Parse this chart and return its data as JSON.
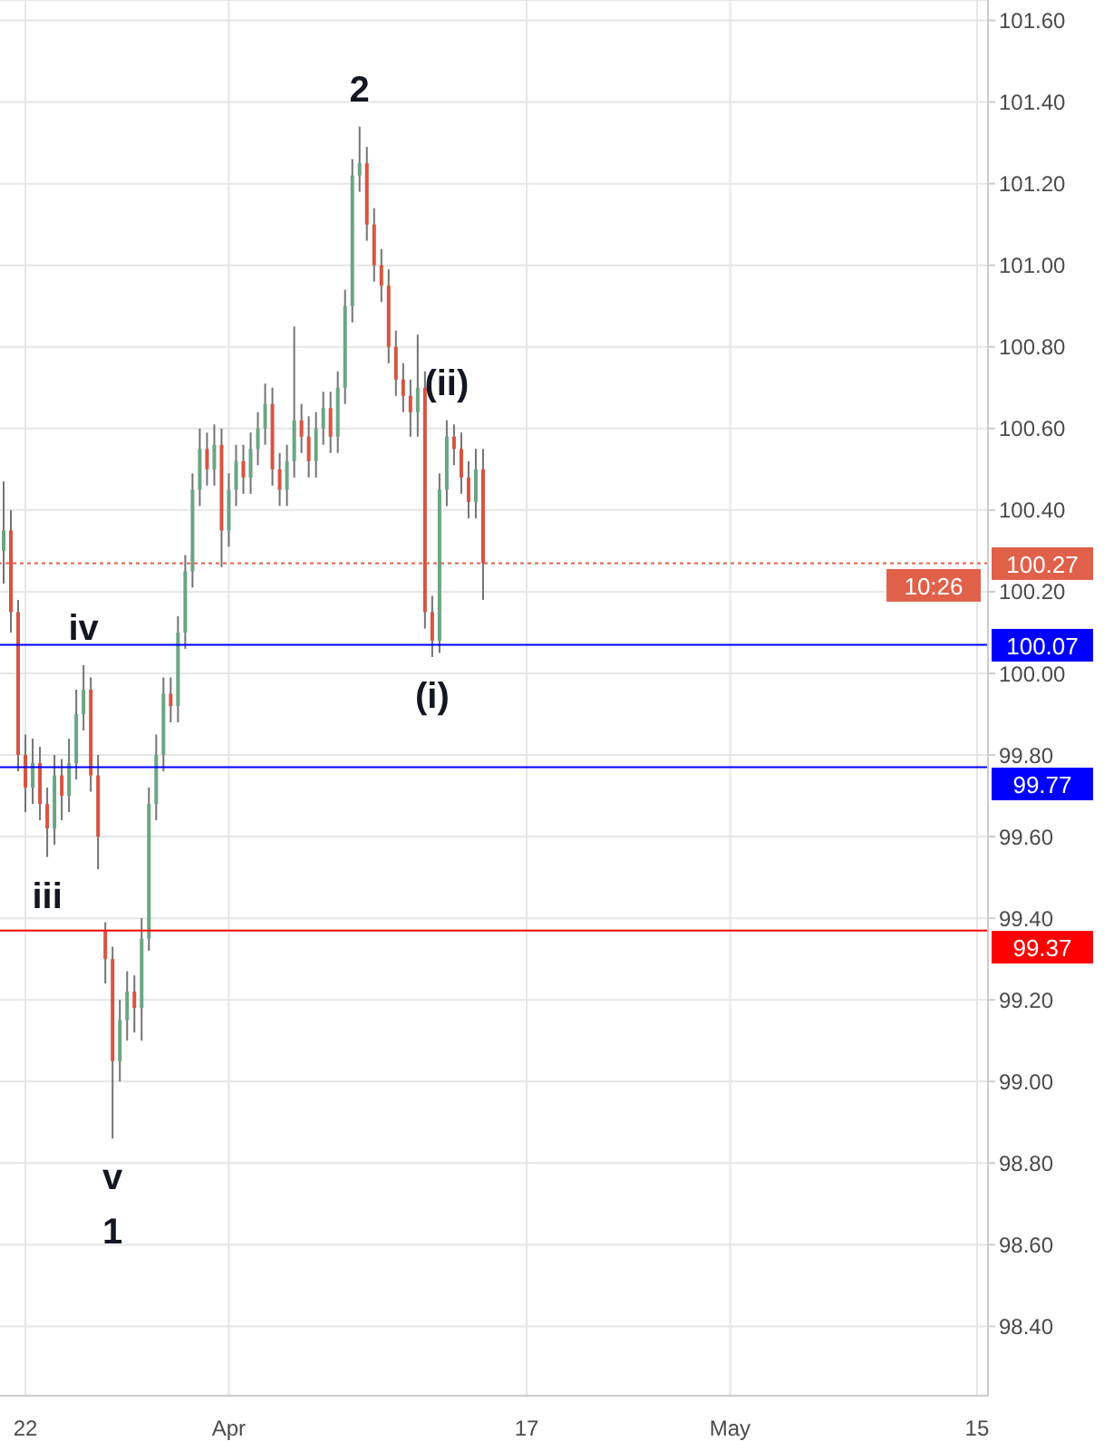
{
  "chart_data": {
    "type": "candlestick",
    "categories": [
      null,
      null,
      null,
      "22",
      null,
      null,
      null,
      null,
      null,
      null,
      null,
      null,
      null,
      null,
      null,
      null,
      null,
      null,
      null,
      null,
      null,
      null,
      null,
      null,
      null,
      null,
      null,
      null,
      null,
      null,
      null,
      "Apr",
      null,
      null,
      null,
      null,
      null,
      null,
      null,
      null,
      null,
      null,
      null,
      null,
      null,
      null,
      null,
      null,
      null,
      null,
      null,
      null,
      null,
      null,
      null,
      null,
      null,
      null,
      null,
      null,
      null,
      null,
      null,
      null,
      null,
      null,
      null,
      null,
      null,
      null,
      null,
      null,
      "17",
      null,
      null,
      null,
      null,
      null,
      null,
      null,
      null,
      null,
      null,
      null,
      null,
      null,
      null,
      null,
      null,
      null,
      null,
      null,
      null,
      null,
      null,
      null,
      null,
      null,
      null,
      null,
      "May",
      null,
      null,
      null,
      null,
      null,
      null,
      null,
      null,
      null,
      null,
      null,
      null,
      null,
      null,
      null,
      null,
      null,
      null,
      null,
      null,
      null,
      null,
      null,
      null,
      null,
      null,
      null,
      null,
      null,
      null,
      null,
      null,
      null,
      "15",
      null
    ],
    "ohlc": [
      [
        100.3,
        100.47,
        100.22,
        100.35
      ],
      [
        100.35,
        100.4,
        100.1,
        100.15
      ],
      [
        100.15,
        100.18,
        99.76,
        99.8
      ],
      [
        99.8,
        99.85,
        99.66,
        99.72
      ],
      [
        99.72,
        99.84,
        99.68,
        99.78
      ],
      [
        99.78,
        99.82,
        99.64,
        99.68
      ],
      [
        99.68,
        99.72,
        99.55,
        99.62
      ],
      [
        99.62,
        99.8,
        99.58,
        99.75
      ],
      [
        99.75,
        99.79,
        99.64,
        99.7
      ],
      [
        99.7,
        99.84,
        99.66,
        99.78
      ],
      [
        99.78,
        99.96,
        99.74,
        99.9
      ],
      [
        99.9,
        100.02,
        99.86,
        99.96
      ],
      [
        99.96,
        99.99,
        99.71,
        99.75
      ],
      [
        99.75,
        99.8,
        99.52,
        99.6
      ],
      [
        99.37,
        99.39,
        99.24,
        99.3
      ],
      [
        99.3,
        99.33,
        98.86,
        99.05
      ],
      [
        99.05,
        99.2,
        99.0,
        99.15
      ],
      [
        99.15,
        99.27,
        99.1,
        99.22
      ],
      [
        99.22,
        99.26,
        99.12,
        99.18
      ],
      [
        99.18,
        99.4,
        99.1,
        99.35
      ],
      [
        99.35,
        99.72,
        99.32,
        99.68
      ],
      [
        99.68,
        99.85,
        99.64,
        99.8
      ],
      [
        99.8,
        99.99,
        99.76,
        99.95
      ],
      [
        99.95,
        99.99,
        99.88,
        99.92
      ],
      [
        99.92,
        100.14,
        99.88,
        100.1
      ],
      [
        100.1,
        100.29,
        100.06,
        100.25
      ],
      [
        100.25,
        100.49,
        100.21,
        100.45
      ],
      [
        100.45,
        100.6,
        100.41,
        100.55
      ],
      [
        100.55,
        100.59,
        100.46,
        100.5
      ],
      [
        100.5,
        100.61,
        100.46,
        100.56
      ],
      [
        100.56,
        100.6,
        100.26,
        100.35
      ],
      [
        100.35,
        100.49,
        100.31,
        100.45
      ],
      [
        100.45,
        100.56,
        100.41,
        100.52
      ],
      [
        100.52,
        100.56,
        100.44,
        100.48
      ],
      [
        100.48,
        100.59,
        100.44,
        100.55
      ],
      [
        100.55,
        100.64,
        100.51,
        100.6
      ],
      [
        100.6,
        100.71,
        100.56,
        100.66
      ],
      [
        100.66,
        100.7,
        100.46,
        100.5
      ],
      [
        100.5,
        100.54,
        100.41,
        100.45
      ],
      [
        100.45,
        100.56,
        100.41,
        100.52
      ],
      [
        100.52,
        100.85,
        100.48,
        100.62
      ],
      [
        100.62,
        100.66,
        100.54,
        100.58
      ],
      [
        100.58,
        100.63,
        100.48,
        100.52
      ],
      [
        100.52,
        100.64,
        100.48,
        100.6
      ],
      [
        100.6,
        100.69,
        100.56,
        100.65
      ],
      [
        100.65,
        100.69,
        100.54,
        100.58
      ],
      [
        100.58,
        100.74,
        100.54,
        100.7
      ],
      [
        100.7,
        100.94,
        100.66,
        100.9
      ],
      [
        100.9,
        101.26,
        100.86,
        101.22
      ],
      [
        101.22,
        101.34,
        101.18,
        101.25
      ],
      [
        101.25,
        101.29,
        101.06,
        101.1
      ],
      [
        101.1,
        101.14,
        100.96,
        101.0
      ],
      [
        101.0,
        101.04,
        100.91,
        100.95
      ],
      [
        100.95,
        100.99,
        100.76,
        100.8
      ],
      [
        100.8,
        100.84,
        100.68,
        100.72
      ],
      [
        100.72,
        100.76,
        100.64,
        100.68
      ],
      [
        100.68,
        100.72,
        100.58,
        100.64
      ],
      [
        100.64,
        100.83,
        100.58,
        100.7
      ],
      [
        100.7,
        100.74,
        100.11,
        100.15
      ],
      [
        100.15,
        100.19,
        100.04,
        100.08
      ],
      [
        100.08,
        100.49,
        100.05,
        100.45
      ],
      [
        100.45,
        100.62,
        100.41,
        100.58
      ],
      [
        100.58,
        100.61,
        100.51,
        100.55
      ],
      [
        100.55,
        100.59,
        100.44,
        100.48
      ],
      [
        100.48,
        100.52,
        100.38,
        100.42
      ],
      [
        100.42,
        100.55,
        100.38,
        100.5
      ],
      [
        100.5,
        100.55,
        100.18,
        100.27
      ],
      null,
      null,
      null,
      null,
      null,
      null,
      null,
      null,
      null,
      null,
      null,
      null,
      null,
      null,
      null,
      null,
      null,
      null,
      null,
      null,
      null,
      null,
      null,
      null,
      null,
      null,
      null,
      null,
      null,
      null,
      null,
      null,
      null,
      null,
      null,
      null,
      null,
      null,
      null,
      null,
      null,
      null,
      null,
      null,
      null,
      null,
      null,
      null,
      null,
      null,
      null,
      null,
      null,
      null,
      null,
      null,
      null,
      null,
      null,
      null,
      null,
      null,
      null,
      null,
      null,
      null,
      null,
      null,
      null
    ],
    "ylim": [
      98.23,
      101.65
    ],
    "yticks": [
      {
        "value": 98.4,
        "label": "98.40"
      },
      {
        "value": 98.6,
        "label": "98.60"
      },
      {
        "value": 98.8,
        "label": "98.80"
      },
      {
        "value": 99.0,
        "label": "99.00"
      },
      {
        "value": 99.2,
        "label": "99.20"
      },
      {
        "value": 99.4,
        "label": "99.40"
      },
      {
        "value": 99.6,
        "label": "99.60"
      },
      {
        "value": 99.8,
        "label": "99.80"
      },
      {
        "value": 100.0,
        "label": "100.00"
      },
      {
        "value": 100.2,
        "label": "100.20"
      },
      {
        "value": 100.4,
        "label": "100.40"
      },
      {
        "value": 100.6,
        "label": "100.60"
      },
      {
        "value": 100.8,
        "label": "100.80"
      },
      {
        "value": 101.0,
        "label": "101.00"
      },
      {
        "value": 101.2,
        "label": "101.20"
      },
      {
        "value": 101.4,
        "label": "101.40"
      },
      {
        "value": 101.6,
        "label": "101.60"
      }
    ],
    "grid": true,
    "ref_lines": [
      {
        "axis": "y",
        "value": 100.27,
        "label": "100.27",
        "color": "#e0604a",
        "line_style": "dotted"
      },
      {
        "axis": "y",
        "value": 100.07,
        "label": "100.07",
        "color": "#0000ff",
        "line_style": "solid"
      },
      {
        "axis": "y",
        "value": 99.77,
        "label": "99.77",
        "color": "#0000ff",
        "line_style": "solid"
      },
      {
        "axis": "y",
        "value": 99.37,
        "label": "99.37",
        "color": "#ff0000",
        "line_style": "solid"
      }
    ],
    "annotations": [
      "10:26",
      {
        "text": "2",
        "y": 101.34
      },
      {
        "text": "iv",
        "y": 100.02
      },
      {
        "text": "iii",
        "y": 99.55
      },
      {
        "text": "v",
        "y": 98.86
      },
      {
        "text": "1",
        "y": 98.86
      },
      {
        "text": "(i)",
        "y": 100.04
      },
      {
        "text": "(ii)",
        "y": 100.62
      }
    ]
  }
}
